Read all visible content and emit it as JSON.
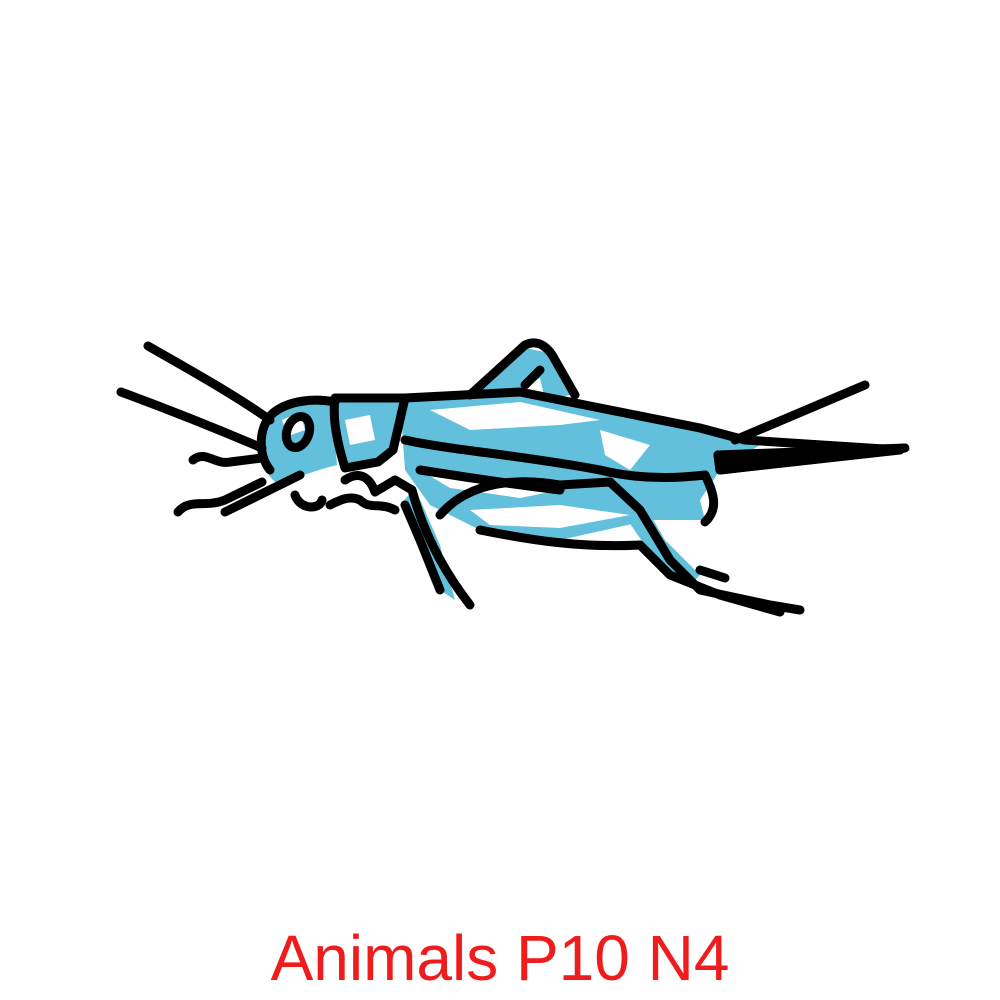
{
  "caption": {
    "text": "Animals P10 N4",
    "color": "#ee1c1c"
  },
  "illustration": {
    "subject": "cricket-icon",
    "fill_color": "#62c0dc",
    "highlight_color": "#ffffff",
    "outline_color": "#000000"
  }
}
